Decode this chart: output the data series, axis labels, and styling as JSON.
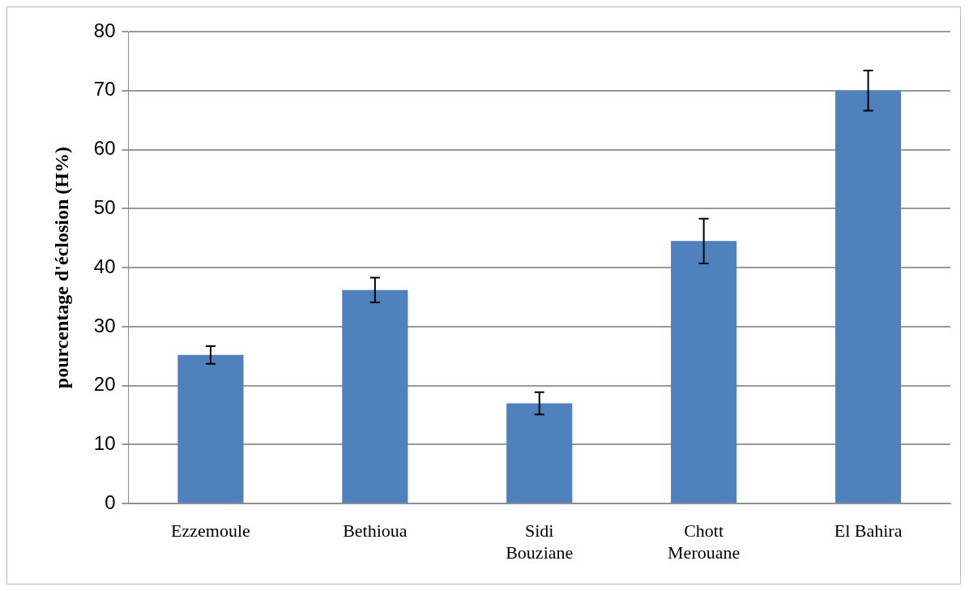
{
  "chart_data": {
    "type": "bar",
    "ylabel": "pourcentage d'éclosion (H%)",
    "categories": [
      "Ezzemoule",
      "Bethioua",
      "Sidi Bouziane",
      "Chott Merouane",
      "El Bahira"
    ],
    "values": [
      25.2,
      36.2,
      17.0,
      44.5,
      70.0
    ],
    "errors": [
      1.5,
      2.1,
      1.9,
      3.8,
      3.4
    ],
    "color": "#4f81bd",
    "ylim": [
      0,
      80
    ],
    "yticks": [
      0,
      10,
      20,
      30,
      40,
      50,
      60,
      70,
      80
    ],
    "grid": "y",
    "legend": false
  }
}
